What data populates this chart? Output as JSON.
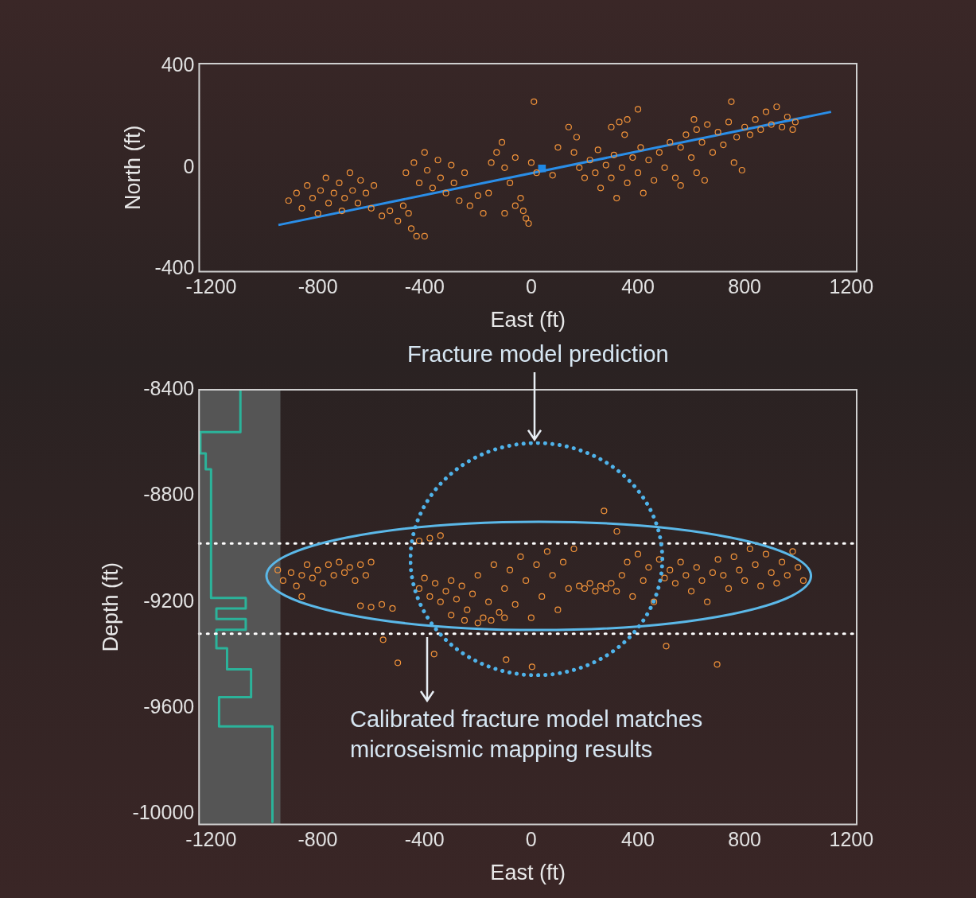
{
  "chart_data": [
    {
      "type": "scatter",
      "xlabel": "East (ft)",
      "ylabel": "North (ft)",
      "xlim": [
        -1245,
        1220
      ],
      "ylim": [
        -410,
        410
      ],
      "xticks": [
        -1200,
        -800,
        -400,
        0,
        400,
        800,
        1200
      ],
      "yticks": [
        -400,
        0,
        400
      ],
      "grid": false,
      "legend": false,
      "series": [
        {
          "type": "scatter",
          "color": "#f0923a",
          "marker": "circle",
          "x": [
            -910,
            -880,
            -860,
            -840,
            -820,
            -800,
            -790,
            -770,
            -760,
            -740,
            -720,
            -710,
            -700,
            -680,
            -670,
            -650,
            -640,
            -620,
            -600,
            -590,
            -560,
            -530,
            -500,
            -480,
            -450,
            -430,
            -400,
            -460,
            -470,
            -440,
            -420,
            -400,
            -390,
            -370,
            -350,
            -340,
            -320,
            -300,
            -290,
            -270,
            -250,
            -230,
            -200,
            -180,
            -160,
            -150,
            -130,
            -110,
            -100,
            -80,
            -60,
            -40,
            -30,
            -20,
            -60,
            -100,
            -10,
            0,
            20,
            10,
            80,
            100,
            140,
            170,
            160,
            180,
            200,
            220,
            240,
            250,
            260,
            280,
            300,
            310,
            320,
            340,
            350,
            360,
            380,
            400,
            410,
            420,
            440,
            460,
            480,
            500,
            520,
            540,
            560,
            300,
            330,
            360,
            400,
            560,
            580,
            600,
            620,
            640,
            660,
            680,
            700,
            720,
            740,
            760,
            770,
            790,
            800,
            620,
            650,
            750,
            610,
            820,
            840,
            860,
            880,
            900,
            920,
            940,
            960,
            980,
            990
          ],
          "values": [
            -130,
            -100,
            -160,
            -70,
            -120,
            -180,
            -90,
            -40,
            -140,
            -100,
            -60,
            -170,
            -120,
            -20,
            -90,
            -140,
            -50,
            -100,
            -160,
            -70,
            -190,
            -170,
            -210,
            -150,
            -240,
            -270,
            -270,
            -180,
            -20,
            20,
            -60,
            60,
            -10,
            -80,
            30,
            -40,
            -100,
            10,
            -60,
            -130,
            -20,
            -150,
            -110,
            -180,
            -100,
            20,
            60,
            100,
            0,
            -60,
            40,
            -120,
            -170,
            -200,
            -150,
            -180,
            -220,
            20,
            -20,
            260,
            -30,
            80,
            160,
            120,
            60,
            0,
            -40,
            30,
            -20,
            70,
            -80,
            10,
            -40,
            50,
            -120,
            0,
            130,
            -60,
            40,
            -20,
            80,
            -100,
            30,
            -50,
            60,
            0,
            100,
            -40,
            -70,
            160,
            180,
            190,
            230,
            80,
            130,
            40,
            150,
            100,
            170,
            60,
            140,
            90,
            180,
            20,
            120,
            -10,
            160,
            -20,
            -50,
            260,
            190,
            130,
            190,
            150,
            220,
            170,
            240,
            160,
            200,
            150,
            180
          ]
        },
        {
          "type": "line",
          "color": "#2a8ee8",
          "marker": "none",
          "line_style": "solid",
          "x": [
            -948,
            1124
          ],
          "values": [
            -226,
            220
          ]
        },
        {
          "type": "scatter",
          "color": "#1e88e5",
          "marker": "square",
          "x": [
            40
          ],
          "values": [
            -3
          ]
        }
      ]
    },
    {
      "type": "scatter",
      "xlabel": "East (ft)",
      "ylabel": "Depth (ft)",
      "xlim": [
        -1245,
        1220
      ],
      "ylim": [
        -10040,
        -8400
      ],
      "xticks": [
        -1200,
        -800,
        -400,
        0,
        400,
        800,
        1200
      ],
      "yticks": [
        -10000,
        -9600,
        -9200,
        -8800,
        -8400
      ],
      "grid": false,
      "legend": false,
      "bands": [
        {
          "axis": "x",
          "from": -1245,
          "to": -940,
          "color": "#555555"
        }
      ],
      "ref_lines": [
        {
          "axis": "y",
          "value": -8980,
          "color": "#ffffff",
          "line_style": "dotted"
        },
        {
          "axis": "y",
          "value": -9320,
          "color": "#ffffff",
          "line_style": "dotted"
        }
      ],
      "annotations": [
        "Fracture model prediction",
        {
          "text": "Calibrated fracture model matches microseismic mapping results",
          "x": -390,
          "y": -9320
        }
      ],
      "series": [
        {
          "type": "line",
          "color": "#2bb39a",
          "marker": "none",
          "line_style": "solid",
          "x": [
            -1090,
            -1090,
            -1240,
            -1240,
            -1220,
            -1220,
            -1200,
            -1200,
            -1070,
            -1070,
            -1180,
            -1180,
            -1070,
            -1070,
            -1180,
            -1180,
            -1140,
            -1140,
            -1050,
            -1050,
            -1170,
            -1170,
            -970,
            -970
          ],
          "values": [
            -8400,
            -8560,
            -8560,
            -8640,
            -8640,
            -8700,
            -8700,
            -9185,
            -9185,
            -9225,
            -9225,
            -9265,
            -9265,
            -9305,
            -9305,
            -9375,
            -9375,
            -9455,
            -9455,
            -9560,
            -9560,
            -9670,
            -9670,
            -10030
          ]
        },
        {
          "type": "scatter",
          "color": "#f0923a",
          "marker": "circle",
          "x": [
            -950,
            -930,
            -900,
            -880,
            -860,
            -840,
            -820,
            -800,
            -780,
            -760,
            -740,
            -720,
            -700,
            -680,
            -660,
            -640,
            -620,
            -600,
            -860,
            -640,
            -600,
            -560,
            -520,
            -420,
            -380,
            -340,
            -420,
            -400,
            -380,
            -360,
            -340,
            -320,
            -300,
            -280,
            -260,
            -240,
            -220,
            -200,
            -180,
            -160,
            -140,
            -120,
            -100,
            -80,
            -60,
            -40,
            -20,
            0,
            20,
            40,
            60,
            80,
            100,
            120,
            140,
            160,
            -300,
            -250,
            -200,
            -150,
            -100,
            180,
            200,
            220,
            240,
            260,
            280,
            300,
            320,
            340,
            360,
            380,
            400,
            420,
            440,
            460,
            480,
            500,
            520,
            540,
            560,
            580,
            600,
            620,
            640,
            660,
            680,
            700,
            720,
            740,
            760,
            780,
            800,
            820,
            840,
            860,
            880,
            900,
            920,
            940,
            960,
            980,
            1000,
            1020,
            273,
            321,
            -500,
            506,
            697,
            3,
            -94,
            -364,
            -555
          ],
          "values": [
            -9080,
            -9120,
            -9090,
            -9140,
            -9100,
            -9060,
            -9110,
            -9080,
            -9130,
            -9060,
            -9100,
            -9050,
            -9090,
            -9070,
            -9120,
            -9060,
            -9100,
            -9050,
            -9180,
            -9215,
            -9220,
            -9210,
            -9225,
            -8970,
            -8960,
            -8950,
            -9150,
            -9110,
            -9180,
            -9130,
            -9200,
            -9160,
            -9120,
            -9190,
            -9140,
            -9230,
            -9170,
            -9100,
            -9260,
            -9200,
            -9060,
            -9240,
            -9150,
            -9080,
            -9210,
            -9030,
            -9120,
            -9260,
            -9060,
            -9180,
            -9010,
            -9100,
            -9230,
            -9050,
            -9150,
            -9000,
            -9250,
            -9270,
            -9280,
            -9270,
            -9260,
            -9140,
            -9150,
            -9130,
            -9160,
            -9140,
            -9150,
            -9130,
            -9160,
            -9100,
            -9050,
            -9180,
            -9020,
            -9120,
            -9070,
            -9200,
            -9040,
            -9110,
            -9080,
            -9130,
            -9050,
            -9100,
            -9160,
            -9070,
            -9120,
            -9200,
            -9090,
            -9040,
            -9100,
            -9150,
            -9030,
            -9080,
            -9120,
            -9000,
            -9060,
            -9140,
            -9020,
            -9090,
            -9130,
            -9050,
            -9100,
            -9010,
            -9070,
            -9120,
            -8857,
            -8934,
            -9430,
            -9367,
            -9436,
            -9445,
            -9418,
            -9397,
            -9343
          ]
        }
      ]
    }
  ]
}
